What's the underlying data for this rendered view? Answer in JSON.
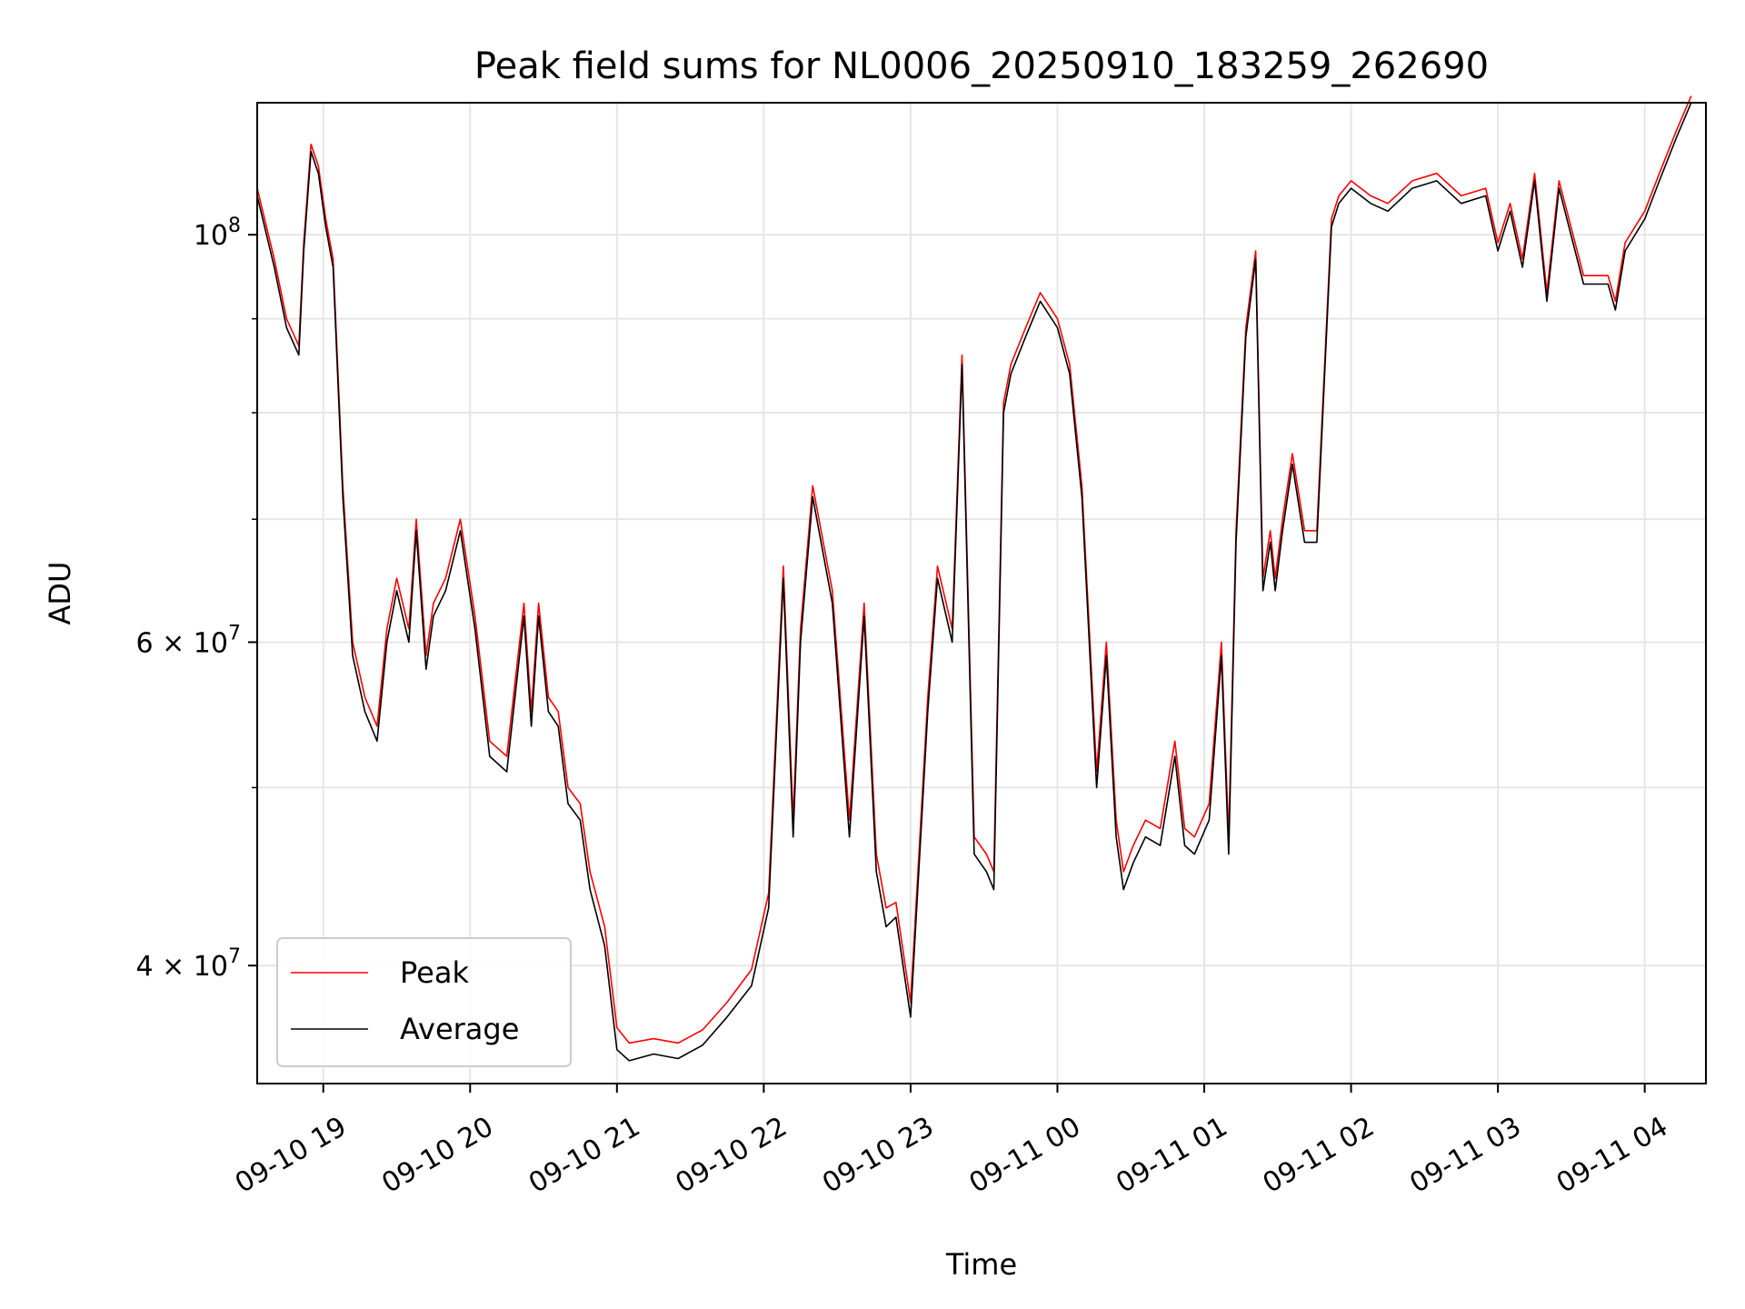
{
  "chart_data": {
    "type": "line",
    "title": "Peak field sums for NL0006_20250910_183259_262690",
    "xlabel": "Time",
    "ylabel": "ADU",
    "y_scale": "log",
    "ylim": [
      34500000,
      118000000
    ],
    "xlim": [
      "2025-09-10 18:33",
      "2025-09-11 04:25"
    ],
    "grid": true,
    "legend_position": "lower-left",
    "x_ticks": [
      "09-10 19",
      "09-10 20",
      "09-10 21",
      "09-10 22",
      "09-10 23",
      "09-11 00",
      "09-11 01",
      "09-11 02",
      "09-11 03",
      "09-11 04"
    ],
    "y_ticks": [
      {
        "value": 100000000,
        "label_base": "10",
        "label_exp": "8"
      },
      {
        "value": 60000000,
        "label_base": "6 × 10",
        "label_exp": "7"
      },
      {
        "value": 40000000,
        "label_base": "4 × 10",
        "label_exp": "7"
      }
    ],
    "y_minor_ticks": [
      50000000,
      70000000,
      80000000,
      90000000
    ],
    "colors": {
      "peak": "#ff0000",
      "average": "#000000"
    },
    "series": [
      {
        "name": "Peak",
        "color": "#ff0000"
      },
      {
        "name": "Average",
        "color": "#000000"
      }
    ],
    "x": [
      "2025-09-10 18:33",
      "2025-09-10 18:40",
      "2025-09-10 18:45",
      "2025-09-10 18:50",
      "2025-09-10 18:52",
      "2025-09-10 18:55",
      "2025-09-10 18:58",
      "2025-09-10 19:01",
      "2025-09-10 19:04",
      "2025-09-10 19:08",
      "2025-09-10 19:12",
      "2025-09-10 19:17",
      "2025-09-10 19:22",
      "2025-09-10 19:26",
      "2025-09-10 19:30",
      "2025-09-10 19:35",
      "2025-09-10 19:38",
      "2025-09-10 19:42",
      "2025-09-10 19:45",
      "2025-09-10 19:50",
      "2025-09-10 19:56",
      "2025-09-10 20:02",
      "2025-09-10 20:08",
      "2025-09-10 20:15",
      "2025-09-10 20:22",
      "2025-09-10 20:25",
      "2025-09-10 20:28",
      "2025-09-10 20:32",
      "2025-09-10 20:36",
      "2025-09-10 20:40",
      "2025-09-10 20:45",
      "2025-09-10 20:49",
      "2025-09-10 20:55",
      "2025-09-10 21:00",
      "2025-09-10 21:05",
      "2025-09-10 21:15",
      "2025-09-10 21:25",
      "2025-09-10 21:35",
      "2025-09-10 21:45",
      "2025-09-10 21:55",
      "2025-09-10 22:02",
      "2025-09-10 22:08",
      "2025-09-10 22:12",
      "2025-09-10 22:15",
      "2025-09-10 22:20",
      "2025-09-10 22:28",
      "2025-09-10 22:35",
      "2025-09-10 22:41",
      "2025-09-10 22:46",
      "2025-09-10 22:50",
      "2025-09-10 22:54",
      "2025-09-10 23:00",
      "2025-09-10 23:07",
      "2025-09-10 23:11",
      "2025-09-10 23:17",
      "2025-09-10 23:21",
      "2025-09-10 23:26",
      "2025-09-10 23:31",
      "2025-09-10 23:34",
      "2025-09-10 23:38",
      "2025-09-10 23:41",
      "2025-09-10 23:47",
      "2025-09-10 23:53",
      "2025-09-11 00:00",
      "2025-09-11 00:05",
      "2025-09-11 00:10",
      "2025-09-11 00:16",
      "2025-09-11 00:20",
      "2025-09-11 00:24",
      "2025-09-11 00:27",
      "2025-09-11 00:31",
      "2025-09-11 00:36",
      "2025-09-11 00:42",
      "2025-09-11 00:48",
      "2025-09-11 00:52",
      "2025-09-11 00:56",
      "2025-09-11 01:02",
      "2025-09-11 01:07",
      "2025-09-11 01:10",
      "2025-09-11 01:13",
      "2025-09-11 01:17",
      "2025-09-11 01:21",
      "2025-09-11 01:24",
      "2025-09-11 01:27",
      "2025-09-11 01:29",
      "2025-09-11 01:32",
      "2025-09-11 01:36",
      "2025-09-11 01:41",
      "2025-09-11 01:46",
      "2025-09-11 01:52",
      "2025-09-11 01:55",
      "2025-09-11 02:00",
      "2025-09-11 02:08",
      "2025-09-11 02:15",
      "2025-09-11 02:25",
      "2025-09-11 02:35",
      "2025-09-11 02:45",
      "2025-09-11 02:55",
      "2025-09-11 03:00",
      "2025-09-11 03:05",
      "2025-09-11 03:10",
      "2025-09-11 03:15",
      "2025-09-11 03:20",
      "2025-09-11 03:25",
      "2025-09-11 03:35",
      "2025-09-11 03:45",
      "2025-09-11 03:48",
      "2025-09-11 03:52",
      "2025-09-11 04:00",
      "2025-09-11 04:06",
      "2025-09-11 04:13",
      "2025-09-11 04:19",
      "2025-09-11 04:25"
    ],
    "average": [
      105000000,
      96000000,
      89000000,
      86000000,
      98000000,
      111000000,
      108000000,
      101000000,
      96000000,
      72000000,
      59000000,
      55000000,
      53000000,
      60000000,
      64000000,
      60000000,
      69000000,
      58000000,
      62000000,
      64000000,
      69000000,
      61000000,
      52000000,
      51000000,
      62000000,
      54000000,
      62000000,
      55000000,
      54000000,
      49000000,
      48000000,
      44000000,
      41000000,
      36000000,
      35500000,
      35800000,
      35600000,
      36200000,
      37500000,
      39000000,
      43000000,
      65000000,
      47000000,
      60000000,
      72000000,
      63000000,
      47000000,
      62000000,
      45000000,
      42000000,
      42500000,
      37500000,
      55000000,
      65000000,
      60000000,
      85000000,
      46000000,
      45000000,
      44000000,
      80000000,
      84000000,
      88000000,
      92000000,
      89000000,
      84000000,
      72000000,
      50000000,
      59000000,
      47000000,
      44000000,
      45500000,
      47000000,
      46500000,
      52000000,
      46500000,
      46000000,
      48000000,
      59000000,
      46000000,
      68000000,
      88000000,
      97000000,
      64000000,
      68000000,
      64000000,
      69000000,
      75000000,
      68000000,
      68000000,
      101000000,
      104000000,
      106000000,
      104000000,
      103000000,
      106000000,
      107000000,
      104000000,
      105000000,
      98000000,
      103000000,
      96000000,
      107000000,
      92000000,
      106000000,
      94000000,
      94000000,
      91000000,
      98000000,
      102000000,
      107000000,
      113000000,
      118000000
    ],
    "peak": [
      106000000,
      97000000,
      90000000,
      87000000,
      99000000,
      112000000,
      109000000,
      102000000,
      97000000,
      73000000,
      60000000,
      56000000,
      54000000,
      61000000,
      65000000,
      61000000,
      70000000,
      59000000,
      63000000,
      65000000,
      70000000,
      62000000,
      53000000,
      52000000,
      63000000,
      55000000,
      63000000,
      56000000,
      55000000,
      50000000,
      49000000,
      45000000,
      42000000,
      37000000,
      36300000,
      36500000,
      36300000,
      36900000,
      38200000,
      39800000,
      43800000,
      66000000,
      48000000,
      61000000,
      73000000,
      64000000,
      48000000,
      63000000,
      46000000,
      43000000,
      43300000,
      38200000,
      56000000,
      66000000,
      61000000,
      86000000,
      47000000,
      46000000,
      45000000,
      81000000,
      85000000,
      89000000,
      93000000,
      90000000,
      85000000,
      73000000,
      51000000,
      60000000,
      48000000,
      45000000,
      46500000,
      48000000,
      47500000,
      53000000,
      47500000,
      47000000,
      49000000,
      60000000,
      47000000,
      69000000,
      89000000,
      98000000,
      65000000,
      69000000,
      65000000,
      70000000,
      76000000,
      69000000,
      69000000,
      102000000,
      105000000,
      107000000,
      105000000,
      104000000,
      107000000,
      108000000,
      105000000,
      106000000,
      99000000,
      104000000,
      97000000,
      108000000,
      93000000,
      107000000,
      95000000,
      95000000,
      92000000,
      99000000,
      103000000,
      108000000,
      114000000,
      119000000
    ]
  }
}
